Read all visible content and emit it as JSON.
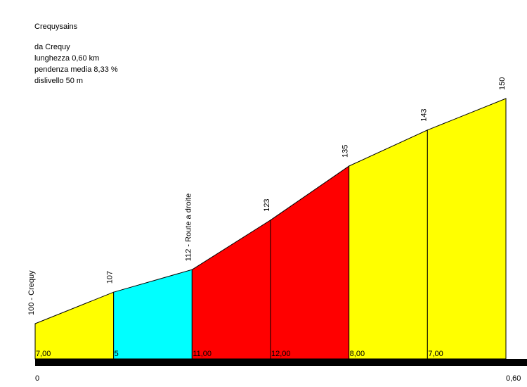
{
  "header": {
    "title": "Crequysains",
    "from": "da Crequy",
    "length": "lunghezza 0,60 km",
    "avg_gradient": "pendenza media 8,33 %",
    "elevation_gain": "dislivello 50 m"
  },
  "chart_data": {
    "type": "area",
    "title": "Crequysains",
    "xlabel": "",
    "ylabel": "",
    "x_unit": "km",
    "y_unit": "m",
    "xlim": [
      0,
      0.6
    ],
    "x_tick_labels": [
      "0",
      "0,60"
    ],
    "points": [
      {
        "x": 0.0,
        "y": 100,
        "label": "100 - Crequy"
      },
      {
        "x": 0.1,
        "y": 107,
        "label": "107"
      },
      {
        "x": 0.2,
        "y": 112,
        "label": "112 - Route a droite"
      },
      {
        "x": 0.3,
        "y": 123,
        "label": "123"
      },
      {
        "x": 0.4,
        "y": 135,
        "label": "135"
      },
      {
        "x": 0.5,
        "y": 143,
        "label": "143"
      },
      {
        "x": 0.6,
        "y": 150,
        "label": "150"
      }
    ],
    "segments": [
      {
        "gradient": 7.0,
        "label": "7,00",
        "color": "#ffff00"
      },
      {
        "gradient": 5.0,
        "label": "5",
        "color": "#00ffff"
      },
      {
        "gradient": 11.0,
        "label": "11,00",
        "color": "#ff0000"
      },
      {
        "gradient": 12.0,
        "label": "12,00",
        "color": "#ff0000"
      },
      {
        "gradient": 8.0,
        "label": "8,00",
        "color": "#ffff00"
      },
      {
        "gradient": 7.0,
        "label": "7,00",
        "color": "#ffff00"
      }
    ]
  }
}
